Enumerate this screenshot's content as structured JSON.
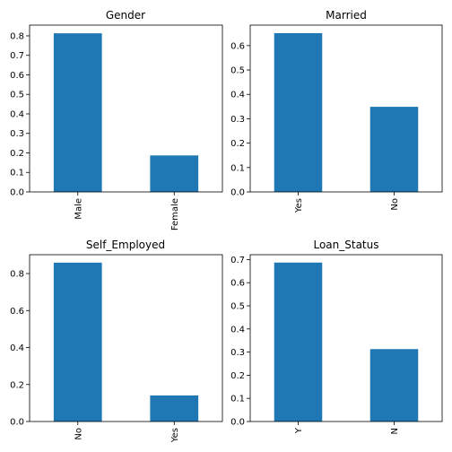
{
  "bar_color": "#1f77b4",
  "chart_data": [
    {
      "type": "bar",
      "title": "Gender",
      "categories": [
        "Male",
        "Female"
      ],
      "values": [
        0.813,
        0.187
      ],
      "ylim": [
        0,
        0.855
      ],
      "yticks": [
        0.0,
        0.1,
        0.2,
        0.3,
        0.4,
        0.5,
        0.6,
        0.7,
        0.8
      ],
      "ytick_labels": [
        "0.0",
        "0.1",
        "0.2",
        "0.3",
        "0.4",
        "0.5",
        "0.6",
        "0.7",
        "0.8"
      ],
      "xlabel": "",
      "ylabel": "",
      "grid": false
    },
    {
      "type": "bar",
      "title": "Married",
      "categories": [
        "Yes",
        "No"
      ],
      "values": [
        0.651,
        0.349
      ],
      "ylim": [
        0,
        0.684
      ],
      "yticks": [
        0.0,
        0.1,
        0.2,
        0.3,
        0.4,
        0.5,
        0.6
      ],
      "ytick_labels": [
        "0.0",
        "0.1",
        "0.2",
        "0.3",
        "0.4",
        "0.5",
        "0.6"
      ],
      "xlabel": "",
      "ylabel": "",
      "grid": false
    },
    {
      "type": "bar",
      "title": "Self_Employed",
      "categories": [
        "No",
        "Yes"
      ],
      "values": [
        0.859,
        0.141
      ],
      "ylim": [
        0,
        0.902
      ],
      "yticks": [
        0.0,
        0.2,
        0.4,
        0.6,
        0.8
      ],
      "ytick_labels": [
        "0.0",
        "0.2",
        "0.4",
        "0.6",
        "0.8"
      ],
      "xlabel": "",
      "ylabel": "",
      "grid": false
    },
    {
      "type": "bar",
      "title": "Loan_Status",
      "categories": [
        "Y",
        "N"
      ],
      "values": [
        0.687,
        0.313
      ],
      "ylim": [
        0,
        0.721
      ],
      "yticks": [
        0.0,
        0.1,
        0.2,
        0.3,
        0.4,
        0.5,
        0.6,
        0.7
      ],
      "ytick_labels": [
        "0.0",
        "0.1",
        "0.2",
        "0.3",
        "0.4",
        "0.5",
        "0.6",
        "0.7"
      ],
      "xlabel": "",
      "ylabel": "",
      "grid": false
    }
  ]
}
